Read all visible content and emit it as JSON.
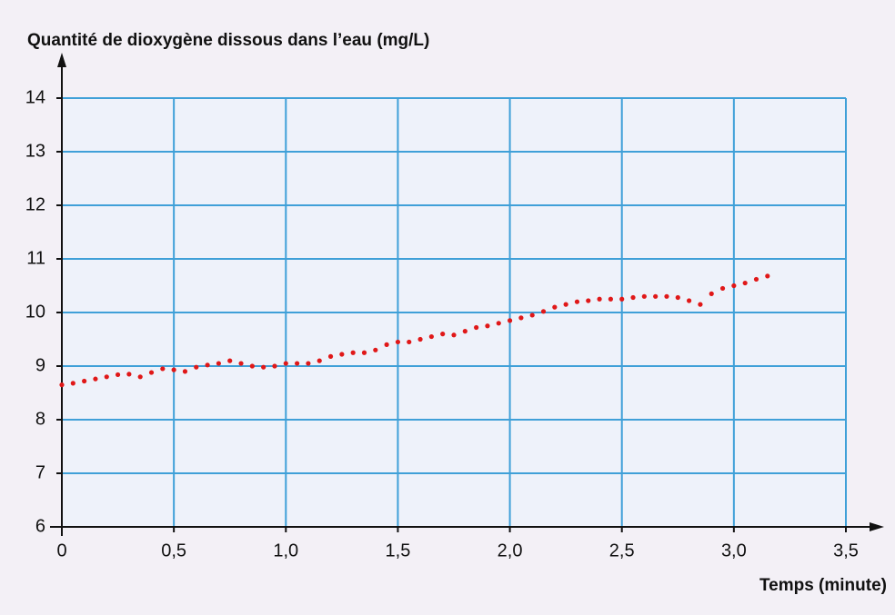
{
  "chart_data": {
    "type": "scatter",
    "title": "Quantité de dioxygène dissous dans l’eau (mg/L)",
    "x_label": "Temps (minute)",
    "color": "#e01818",
    "grid": true,
    "x": [
      0,
      0.05,
      0.1,
      0.15,
      0.2,
      0.25,
      0.3,
      0.35,
      0.4,
      0.45,
      0.5,
      0.55,
      0.6,
      0.65,
      0.7,
      0.75,
      0.8,
      0.85,
      0.9,
      0.95,
      1.0,
      1.05,
      1.1,
      1.15,
      1.2,
      1.25,
      1.3,
      1.35,
      1.4,
      1.45,
      1.5,
      1.55,
      1.6,
      1.65,
      1.7,
      1.75,
      1.8,
      1.85,
      1.9,
      1.95,
      2.0,
      2.05,
      2.1,
      2.15,
      2.2,
      2.25,
      2.3,
      2.35,
      2.4,
      2.45,
      2.5,
      2.55,
      2.6,
      2.65,
      2.7,
      2.75,
      2.8,
      2.85,
      2.9,
      2.95,
      3.0,
      3.05,
      3.1,
      3.15
    ],
    "values": [
      8.65,
      8.68,
      8.72,
      8.76,
      8.8,
      8.84,
      8.85,
      8.8,
      8.88,
      8.95,
      8.93,
      8.9,
      8.98,
      9.02,
      9.05,
      9.1,
      9.05,
      9.0,
      8.98,
      9.0,
      9.05,
      9.05,
      9.05,
      9.1,
      9.18,
      9.22,
      9.25,
      9.25,
      9.3,
      9.4,
      9.45,
      9.45,
      9.5,
      9.55,
      9.6,
      9.58,
      9.65,
      9.72,
      9.75,
      9.8,
      9.85,
      9.9,
      9.95,
      10.02,
      10.1,
      10.15,
      10.2,
      10.22,
      10.25,
      10.25,
      10.25,
      10.28,
      10.3,
      10.3,
      10.3,
      10.28,
      10.22,
      10.15,
      10.35,
      10.45,
      10.5,
      10.55,
      10.62,
      10.68
    ],
    "xlim": [
      0,
      3.5
    ],
    "xticks": [
      0,
      {
        "value": 0.5,
        "label": "0,5"
      },
      {
        "value": 1.0,
        "label": "1,0"
      },
      {
        "value": 1.5,
        "label": "1,5"
      },
      {
        "value": 2.0,
        "label": "2,0"
      },
      {
        "value": 2.5,
        "label": "2,5"
      },
      {
        "value": 3.0,
        "label": "3,0"
      },
      {
        "value": 3.5,
        "label": "3,5"
      }
    ],
    "ylim": [
      6,
      14
    ],
    "yticks": [
      6,
      7,
      8,
      9,
      10,
      11,
      12,
      13,
      14
    ]
  }
}
